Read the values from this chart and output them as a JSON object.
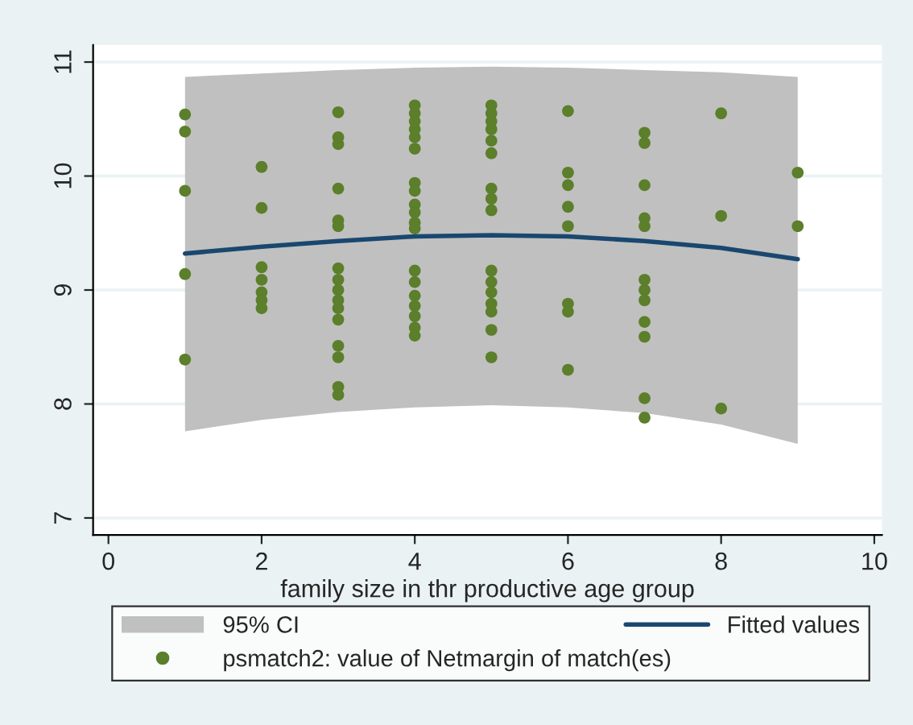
{
  "chart_data": {
    "type": "scatter",
    "xlabel": "family size in thr productive age group",
    "xlim": [
      -0.2,
      10.1
    ],
    "xticks": [
      0,
      2,
      4,
      6,
      8,
      10
    ],
    "ylim": [
      6.85,
      11.15
    ],
    "yticks": [
      7,
      8,
      9,
      10,
      11
    ],
    "grid": "y",
    "legend": "bottom",
    "series": [
      {
        "type": "area",
        "name": "95% CI",
        "color": "#c0c0c0"
      },
      {
        "name": "psmatch2: value of Netmargin of match(es)",
        "color": "#5b7f2a",
        "marker": "circle",
        "x": [
          1,
          1,
          1,
          1,
          1,
          2,
          2,
          2,
          2,
          2,
          2,
          2,
          3,
          3,
          3,
          3,
          3,
          3,
          3,
          3,
          3,
          3,
          3,
          3,
          3,
          3,
          3,
          3,
          4,
          4,
          4,
          4,
          4,
          4,
          4,
          4,
          4,
          4,
          4,
          4,
          4,
          4,
          4,
          4,
          4,
          4,
          4,
          5,
          5,
          5,
          5,
          5,
          5,
          5,
          5,
          5,
          5,
          5,
          5,
          5,
          5,
          5,
          5,
          6,
          6,
          6,
          6,
          6,
          6,
          6,
          6,
          7,
          7,
          7,
          7,
          7,
          7,
          7,
          7,
          7,
          7,
          7,
          7,
          8,
          8,
          8,
          9,
          9
        ],
        "values": [
          10.54,
          10.39,
          9.87,
          9.14,
          8.39,
          10.08,
          9.72,
          9.2,
          9.09,
          8.98,
          8.91,
          8.84,
          10.56,
          10.34,
          10.28,
          9.89,
          9.61,
          9.56,
          9.19,
          9.09,
          9.0,
          8.91,
          8.84,
          8.74,
          8.51,
          8.41,
          8.15,
          8.08,
          10.62,
          10.55,
          10.48,
          10.41,
          10.34,
          10.24,
          9.94,
          9.87,
          9.75,
          9.68,
          9.59,
          9.54,
          9.17,
          9.07,
          8.95,
          8.86,
          8.77,
          8.67,
          8.6,
          10.62,
          10.55,
          10.48,
          10.41,
          10.31,
          10.2,
          9.89,
          9.8,
          9.7,
          9.17,
          9.07,
          8.98,
          8.88,
          8.81,
          8.65,
          8.41,
          10.57,
          10.03,
          9.92,
          9.73,
          9.56,
          8.88,
          8.81,
          8.3,
          10.38,
          10.29,
          9.92,
          9.63,
          9.56,
          9.09,
          9.0,
          8.91,
          8.72,
          8.59,
          8.05,
          7.88,
          10.55,
          9.65,
          7.96,
          10.03,
          9.56
        ]
      },
      {
        "type": "line",
        "name": "Fitted values",
        "color": "#1a476f",
        "line_style": "solid",
        "x": [
          1,
          2,
          3,
          4,
          5,
          6,
          7,
          8,
          9
        ],
        "values": [
          9.32,
          9.38,
          9.43,
          9.47,
          9.48,
          9.47,
          9.43,
          9.37,
          9.27
        ],
        "lower": [
          7.76,
          7.86,
          7.93,
          7.97,
          7.99,
          7.97,
          7.92,
          7.82,
          7.65
        ],
        "upper": [
          10.87,
          10.9,
          10.93,
          10.95,
          10.96,
          10.95,
          10.93,
          10.91,
          10.87
        ]
      }
    ]
  }
}
